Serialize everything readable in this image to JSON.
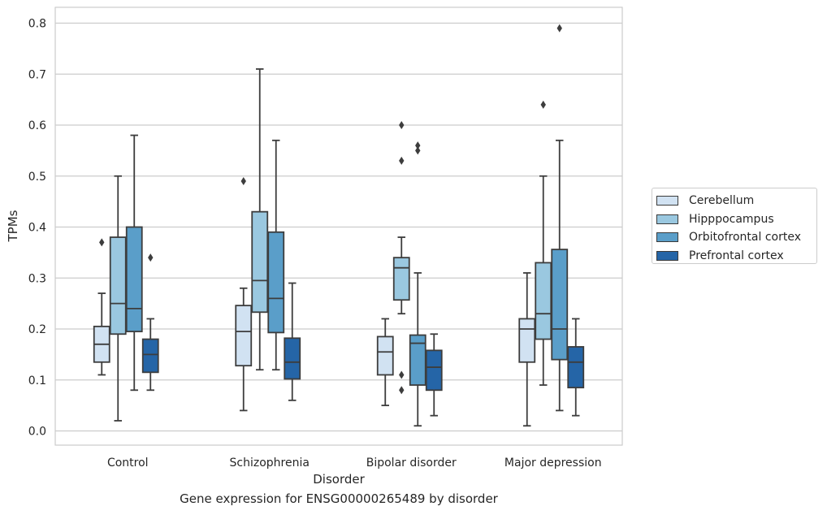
{
  "caption": "Gene expression for ENSG00000265489 by disorder",
  "chart_data": {
    "type": "box",
    "title": "",
    "xlabel": "Disorder",
    "ylabel": "TPMs",
    "categories": [
      "Control",
      "Schizophrenia",
      "Bipolar disorder",
      "Major depression"
    ],
    "ylim": [
      -0.03,
      0.83
    ],
    "yticks": [
      "0.0",
      "0.1",
      "0.2",
      "0.3",
      "0.4",
      "0.5",
      "0.6",
      "0.7",
      "0.8"
    ],
    "grid": "horizontal",
    "legend_position": "right",
    "series": [
      {
        "name": "Cerebellum",
        "color": "#d1e2f2",
        "boxes": [
          {
            "whislo": 0.11,
            "q1": 0.135,
            "med": 0.17,
            "q3": 0.205,
            "whishi": 0.27,
            "fliers": [
              0.37
            ]
          },
          {
            "whislo": 0.04,
            "q1": 0.128,
            "med": 0.195,
            "q3": 0.246,
            "whishi": 0.28,
            "fliers": [
              0.49
            ]
          },
          {
            "whislo": 0.05,
            "q1": 0.11,
            "med": 0.155,
            "q3": 0.185,
            "whishi": 0.22,
            "fliers": []
          },
          {
            "whislo": 0.01,
            "q1": 0.135,
            "med": 0.2,
            "q3": 0.22,
            "whishi": 0.31,
            "fliers": []
          }
        ]
      },
      {
        "name": "Hipppocampus",
        "color": "#9ac8e0",
        "boxes": [
          {
            "whislo": 0.02,
            "q1": 0.19,
            "med": 0.25,
            "q3": 0.38,
            "whishi": 0.5,
            "fliers": []
          },
          {
            "whislo": 0.12,
            "q1": 0.233,
            "med": 0.295,
            "q3": 0.43,
            "whishi": 0.71,
            "fliers": []
          },
          {
            "whislo": 0.23,
            "q1": 0.257,
            "med": 0.32,
            "q3": 0.34,
            "whishi": 0.38,
            "fliers": [
              0.53,
              0.6,
              0.11,
              0.08
            ]
          },
          {
            "whislo": 0.09,
            "q1": 0.18,
            "med": 0.23,
            "q3": 0.33,
            "whishi": 0.5,
            "fliers": [
              0.64
            ]
          }
        ]
      },
      {
        "name": "Orbitofrontal cortex",
        "color": "#5a9ec9",
        "boxes": [
          {
            "whislo": 0.08,
            "q1": 0.195,
            "med": 0.24,
            "q3": 0.4,
            "whishi": 0.58,
            "fliers": []
          },
          {
            "whislo": 0.12,
            "q1": 0.193,
            "med": 0.26,
            "q3": 0.39,
            "whishi": 0.57,
            "fliers": []
          },
          {
            "whislo": 0.01,
            "q1": 0.09,
            "med": 0.172,
            "q3": 0.188,
            "whishi": 0.31,
            "fliers": [
              0.55,
              0.56
            ]
          },
          {
            "whislo": 0.04,
            "q1": 0.14,
            "med": 0.2,
            "q3": 0.356,
            "whishi": 0.57,
            "fliers": [
              0.79
            ]
          }
        ]
      },
      {
        "name": "Prefrontal cortex",
        "color": "#2565a7",
        "boxes": [
          {
            "whislo": 0.08,
            "q1": 0.115,
            "med": 0.15,
            "q3": 0.18,
            "whishi": 0.22,
            "fliers": [
              0.34
            ]
          },
          {
            "whislo": 0.06,
            "q1": 0.102,
            "med": 0.135,
            "q3": 0.182,
            "whishi": 0.29,
            "fliers": []
          },
          {
            "whislo": 0.03,
            "q1": 0.08,
            "med": 0.125,
            "q3": 0.158,
            "whishi": 0.19,
            "fliers": []
          },
          {
            "whislo": 0.03,
            "q1": 0.085,
            "med": 0.135,
            "q3": 0.165,
            "whishi": 0.22,
            "fliers": []
          }
        ]
      }
    ]
  }
}
